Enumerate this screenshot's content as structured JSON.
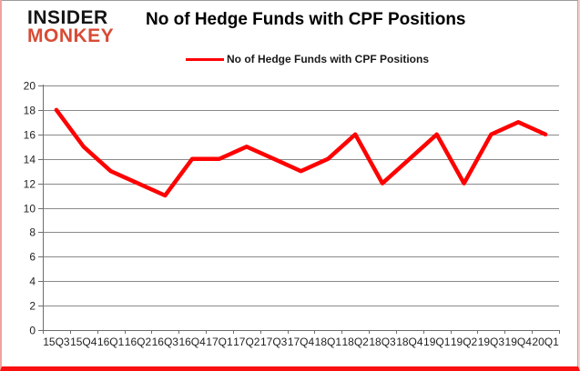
{
  "logo": {
    "line1": "INSIDER",
    "line2": "MONKEY"
  },
  "header": {
    "title": "No of Hedge Funds with CPF Positions"
  },
  "legend": {
    "label": "No of Hedge Funds with CPF Positions",
    "line_color": "#ff0000"
  },
  "colors": {
    "series_line": "#ff0000",
    "gridline": "#8a8a8a",
    "axis": "#6f6f6f",
    "tick_label": "#1f1f1f",
    "logo_black": "#141414",
    "logo_red": "#d84b35",
    "frame_red": "#fa1010",
    "frame_pink": "#f0a39d",
    "frame_gray": "#9b9b9b"
  },
  "chart_data": {
    "type": "line",
    "title": "No of Hedge Funds with CPF Positions",
    "series": [
      {
        "name": "No of Hedge Funds with CPF Positions",
        "color": "#ff0000",
        "values": [
          18,
          15,
          13,
          12,
          11,
          14,
          14,
          15,
          14,
          13,
          14,
          16,
          12,
          14,
          16,
          12,
          16,
          17,
          16
        ]
      }
    ],
    "categories": [
      "15Q3",
      "15Q4",
      "16Q1",
      "16Q2",
      "16Q3",
      "16Q4",
      "17Q1",
      "17Q2",
      "17Q3",
      "17Q4",
      "18Q1",
      "18Q2",
      "18Q3",
      "18Q4",
      "19Q1",
      "19Q2",
      "19Q3",
      "19Q4",
      "20Q1"
    ],
    "xlabel": "",
    "ylabel": "",
    "ylim": [
      0,
      20
    ],
    "ytick_step": 2,
    "yticks": [
      0,
      2,
      4,
      6,
      8,
      10,
      12,
      14,
      16,
      18,
      20
    ],
    "grid": "horizontal",
    "legend_position": "top"
  }
}
